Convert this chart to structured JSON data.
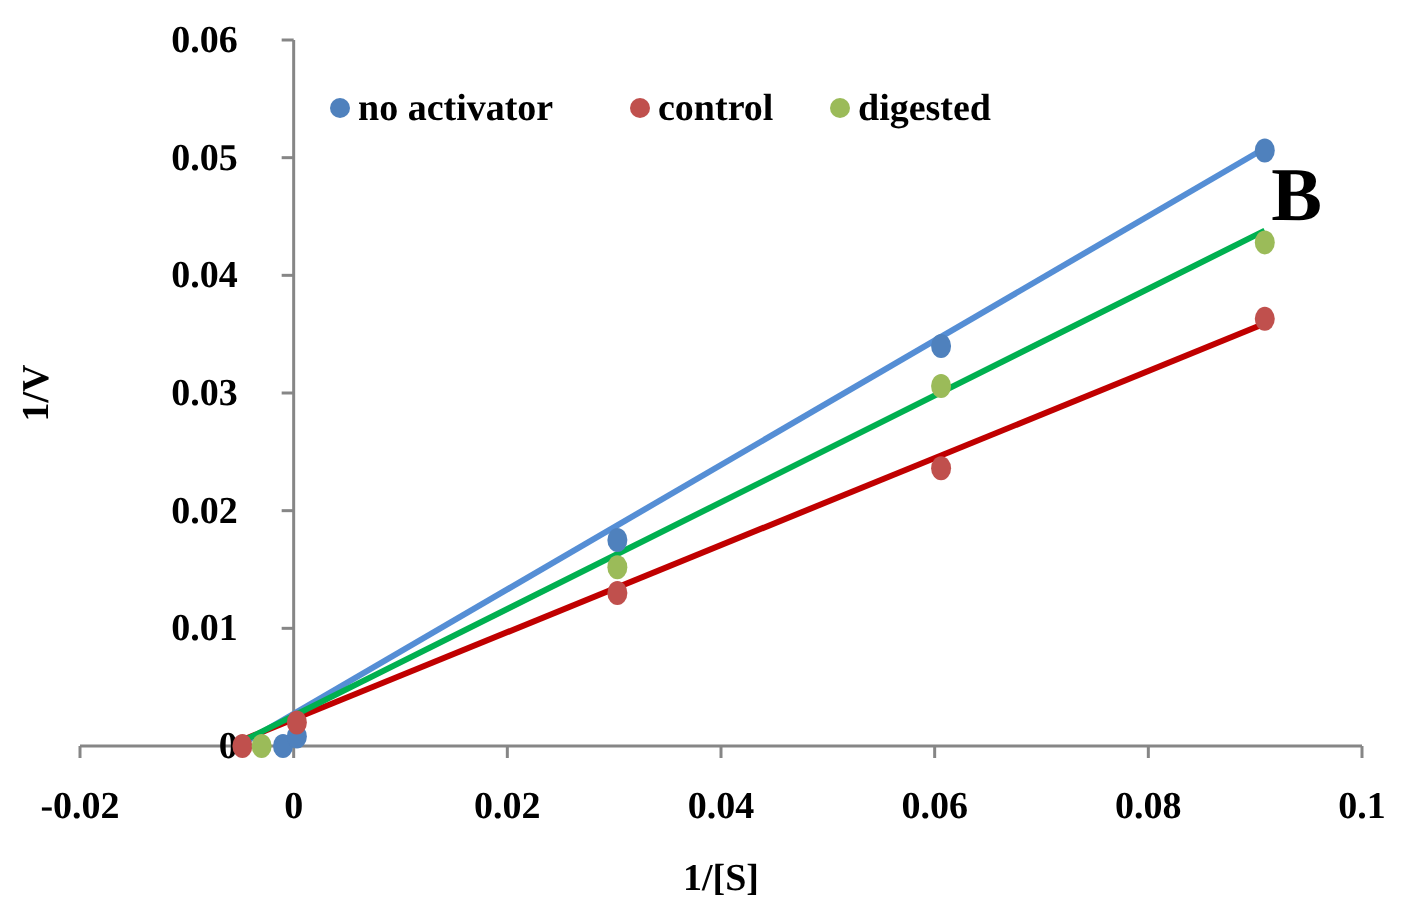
{
  "chart_data": {
    "type": "scatter",
    "xlabel": "1/[S]",
    "ylabel": "1/V",
    "annotations": [
      "B"
    ],
    "xlim": [
      -0.02,
      0.1
    ],
    "xticks": [
      {
        "value": -0.02,
        "label": "-0.02"
      },
      0,
      0.02,
      0.04,
      0.06,
      0.08,
      0.1
    ],
    "ylim": [
      0,
      0.06
    ],
    "yticks": [
      0,
      0.01,
      0.02,
      0.03,
      0.04,
      0.05,
      0.06
    ],
    "grid": false,
    "legend": "top",
    "marker": "circle",
    "series": [
      {
        "name": "no activator",
        "color": "#4f81bd",
        "x": [
          -0.001,
          0.0003,
          0.0303,
          0.0606,
          0.0909
        ],
        "values": [
          0,
          0.0008,
          0.0175,
          0.034,
          0.0506
        ]
      },
      {
        "name": "control",
        "color": "#c0504d",
        "x": [
          -0.0048,
          0.0003,
          0.0303,
          0.0606,
          0.0909
        ],
        "values": [
          0,
          0.002,
          0.013,
          0.0236,
          0.0363
        ]
      },
      {
        "name": "digested",
        "color": "#9bbb59",
        "x": [
          -0.003,
          0.0303,
          0.0606,
          0.0909
        ],
        "values": [
          0,
          0.0152,
          0.0306,
          0.0428
        ]
      },
      {
        "type": "line",
        "marker": "none",
        "color": "#558ed5",
        "x": [
          -0.0048,
          0.0909
        ],
        "values": [
          0.0002,
          0.0508
        ]
      },
      {
        "type": "line",
        "marker": "none",
        "color": "#c00000",
        "x": [
          -0.0048,
          0.0909
        ],
        "values": [
          0.0005,
          0.0359
        ]
      },
      {
        "type": "line",
        "marker": "none",
        "color": "#00b050",
        "x": [
          -0.0048,
          0.0909
        ],
        "values": [
          0.0004,
          0.0438
        ]
      }
    ]
  }
}
